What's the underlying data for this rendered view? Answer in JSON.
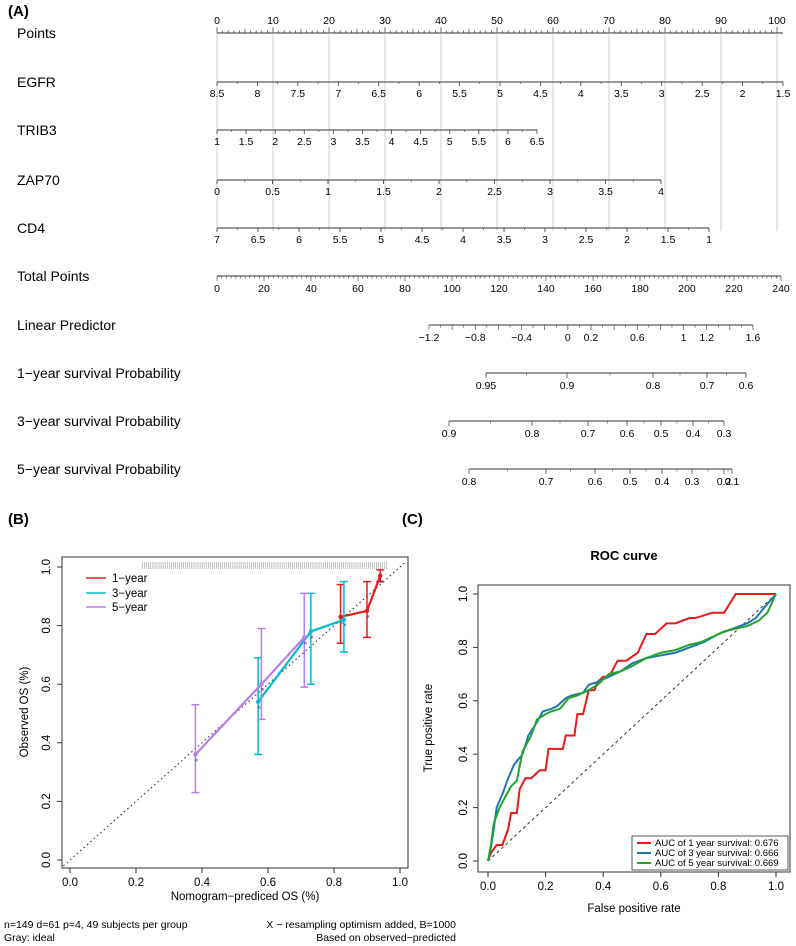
{
  "panel_labels": {
    "a": "(A)",
    "b": "(B)",
    "c": "(C)"
  },
  "chart_data": [
    {
      "type": "nomogram",
      "panel": "(A)",
      "rows": [
        {
          "label": "Points",
          "kind": "points",
          "min": 0,
          "max": 100,
          "labels": [
            "0",
            "10",
            "20",
            "30",
            "40",
            "50",
            "60",
            "70",
            "80",
            "90",
            "100"
          ]
        },
        {
          "label": "EGFR",
          "kind": "var",
          "start": 8.5,
          "end": 1.5,
          "step": 0.5,
          "labels": [
            "8.5",
            "8",
            "7.5",
            "7",
            "6.5",
            "6",
            "5.5",
            "5",
            "4.5",
            "4",
            "3.5",
            "3",
            "2.5",
            "2",
            "1.5"
          ]
        },
        {
          "label": "TRIB3",
          "kind": "var",
          "start": 1,
          "end": 6.5,
          "step": 0.5,
          "labels": [
            "1",
            "1.5",
            "2",
            "2.5",
            "3",
            "3.5",
            "4",
            "4.5",
            "5",
            "5.5",
            "6",
            "6.5"
          ]
        },
        {
          "label": "ZAP70",
          "kind": "var",
          "start": 0,
          "end": 4,
          "step": 0.5,
          "labels": [
            "0",
            "0.5",
            "1",
            "1.5",
            "2",
            "2.5",
            "3",
            "3.5",
            "4"
          ]
        },
        {
          "label": "CD4",
          "kind": "var",
          "start": 7,
          "end": 1,
          "step": 0.5,
          "labels": [
            "7",
            "6.5",
            "6",
            "5.5",
            "5",
            "4.5",
            "4",
            "3.5",
            "3",
            "2.5",
            "2",
            "1.5",
            "1"
          ]
        },
        {
          "label": "Total Points",
          "kind": "total",
          "min": 0,
          "max": 240,
          "labels": [
            "0",
            "20",
            "40",
            "60",
            "80",
            "100",
            "120",
            "140",
            "160",
            "180",
            "200",
            "220",
            "240"
          ]
        },
        {
          "label": "Linear Predictor",
          "kind": "scale",
          "values": [
            -1.2,
            -0.8,
            -0.4,
            0,
            0.2,
            0.6,
            1,
            1.2,
            1.6
          ],
          "labels": [
            "−1.2",
            "−0.8",
            "−0.4",
            "0",
            "0.2",
            "0.6",
            "1",
            "1.2",
            "1.6"
          ]
        },
        {
          "label": "1−year survival Probability",
          "kind": "scale",
          "values": [
            0.95,
            0.9,
            0.8,
            0.7,
            0.6
          ],
          "labels": [
            "0.95",
            "0.9",
            "0.8",
            "0.7",
            "0.6"
          ]
        },
        {
          "label": "3−year survival Probability",
          "kind": "scale",
          "values": [
            0.9,
            0.8,
            0.7,
            0.6,
            0.5,
            0.4,
            0.3
          ],
          "labels": [
            "0.9",
            "0.8",
            "0.7",
            "0.6",
            "0.5",
            "0.4",
            "0.3"
          ]
        },
        {
          "label": "5−year survival Probability",
          "kind": "scale",
          "values": [
            0.8,
            0.7,
            0.6,
            0.5,
            0.4,
            0.3,
            0.2,
            0.1
          ],
          "labels": [
            "0.8",
            "0.7",
            "0.6",
            "0.5",
            "0.4",
            "0.3",
            "0.2",
            "0.1"
          ]
        }
      ]
    },
    {
      "type": "calibration",
      "panel": "(B)",
      "xlabel": "Nomogram−prediced OS (%)",
      "ylabel": "Observed OS (%)",
      "xlim": [
        0,
        1
      ],
      "ylim": [
        0,
        1
      ],
      "xticks": [
        "0.0",
        "0.2",
        "0.4",
        "0.6",
        "0.8",
        "1.0"
      ],
      "yticks": [
        "0.0",
        "0.2",
        "0.4",
        "0.6",
        "0.8",
        "1.0"
      ],
      "legend": [
        "1−year",
        "3−year",
        "5−year"
      ],
      "series": [
        {
          "name": "1−year",
          "color": "#e41a1c",
          "x": [
            0.82,
            0.9,
            0.94
          ],
          "y": [
            0.83,
            0.85,
            0.97
          ],
          "lower": [
            0.74,
            0.76,
            0.95
          ],
          "upper": [
            0.94,
            0.95,
            0.99
          ]
        },
        {
          "name": "3−year",
          "color": "#00bcd4",
          "x": [
            0.57,
            0.73,
            0.83
          ],
          "y": [
            0.54,
            0.78,
            0.82
          ],
          "lower": [
            0.36,
            0.6,
            0.71
          ],
          "upper": [
            0.69,
            0.91,
            0.95
          ]
        },
        {
          "name": "5−year",
          "color": "#b77fe8",
          "x": [
            0.38,
            0.58,
            0.71
          ],
          "y": [
            0.36,
            0.6,
            0.76
          ],
          "lower": [
            0.23,
            0.48,
            0.59
          ],
          "upper": [
            0.53,
            0.79,
            0.91
          ]
        }
      ],
      "notes": {
        "left1": "n=149 d=61 p=4, 49 subjects per group",
        "left2": "Gray: ideal",
        "right1": "X − resampling optimism added, B=1000",
        "right2": "Based on observed−predicted"
      }
    },
    {
      "type": "roc",
      "panel": "(C)",
      "title": "ROC curve",
      "xlabel": "False positive rate",
      "ylabel": "True positive rate",
      "xlim": [
        0,
        1
      ],
      "ylim": [
        0,
        1
      ],
      "xticks": [
        "0.0",
        "0.2",
        "0.4",
        "0.6",
        "0.8",
        "1.0"
      ],
      "yticks": [
        "0.0",
        "0.2",
        "0.4",
        "0.6",
        "0.8",
        "1.0"
      ],
      "legend": [
        "AUC of 1 year survival: 0.676",
        "AUC of 3 year survival: 0.666",
        "AUC of 5 year survival: 0.669"
      ],
      "series": [
        {
          "name": "1 year",
          "color": "#e8191b",
          "x": [
            0,
            0.01,
            0.03,
            0.05,
            0.07,
            0.08,
            0.1,
            0.11,
            0.13,
            0.15,
            0.18,
            0.2,
            0.21,
            0.26,
            0.27,
            0.3,
            0.31,
            0.33,
            0.35,
            0.37,
            0.38,
            0.4,
            0.42,
            0.45,
            0.48,
            0.52,
            0.55,
            0.58,
            0.62,
            0.65,
            0.7,
            0.72,
            0.78,
            0.82,
            0.86,
            0.88,
            0.92,
            0.96,
            1.0
          ],
          "y": [
            0,
            0.03,
            0.06,
            0.06,
            0.12,
            0.18,
            0.18,
            0.27,
            0.31,
            0.31,
            0.34,
            0.34,
            0.42,
            0.42,
            0.47,
            0.47,
            0.55,
            0.55,
            0.64,
            0.64,
            0.67,
            0.69,
            0.69,
            0.75,
            0.75,
            0.78,
            0.85,
            0.85,
            0.89,
            0.89,
            0.91,
            0.91,
            0.93,
            0.93,
            1.0,
            1.0,
            1.0,
            1.0,
            1.0
          ]
        },
        {
          "name": "3 year",
          "color": "#1f77b4",
          "x": [
            0,
            0.01,
            0.02,
            0.03,
            0.05,
            0.07,
            0.09,
            0.12,
            0.14,
            0.17,
            0.19,
            0.22,
            0.24,
            0.27,
            0.29,
            0.33,
            0.35,
            0.38,
            0.42,
            0.46,
            0.5,
            0.55,
            0.6,
            0.65,
            0.7,
            0.75,
            0.8,
            0.85,
            0.9,
            0.93,
            0.96,
            1.0
          ],
          "y": [
            0,
            0.05,
            0.12,
            0.2,
            0.25,
            0.31,
            0.36,
            0.4,
            0.47,
            0.52,
            0.56,
            0.57,
            0.58,
            0.61,
            0.62,
            0.63,
            0.66,
            0.67,
            0.69,
            0.71,
            0.74,
            0.76,
            0.77,
            0.78,
            0.8,
            0.82,
            0.85,
            0.87,
            0.89,
            0.91,
            0.95,
            1.0
          ]
        },
        {
          "name": "5 year",
          "color": "#22a52a",
          "x": [
            0,
            0.01,
            0.02,
            0.04,
            0.06,
            0.08,
            0.1,
            0.12,
            0.15,
            0.17,
            0.2,
            0.22,
            0.25,
            0.28,
            0.31,
            0.35,
            0.38,
            0.42,
            0.46,
            0.5,
            0.55,
            0.6,
            0.65,
            0.7,
            0.74,
            0.78,
            0.82,
            0.86,
            0.9,
            0.94,
            0.97,
            1.0
          ],
          "y": [
            0,
            0.06,
            0.14,
            0.2,
            0.24,
            0.28,
            0.3,
            0.41,
            0.47,
            0.53,
            0.55,
            0.56,
            0.57,
            0.61,
            0.62,
            0.64,
            0.66,
            0.7,
            0.71,
            0.73,
            0.76,
            0.78,
            0.79,
            0.81,
            0.82,
            0.84,
            0.86,
            0.87,
            0.88,
            0.9,
            0.93,
            1.0
          ]
        }
      ]
    }
  ]
}
